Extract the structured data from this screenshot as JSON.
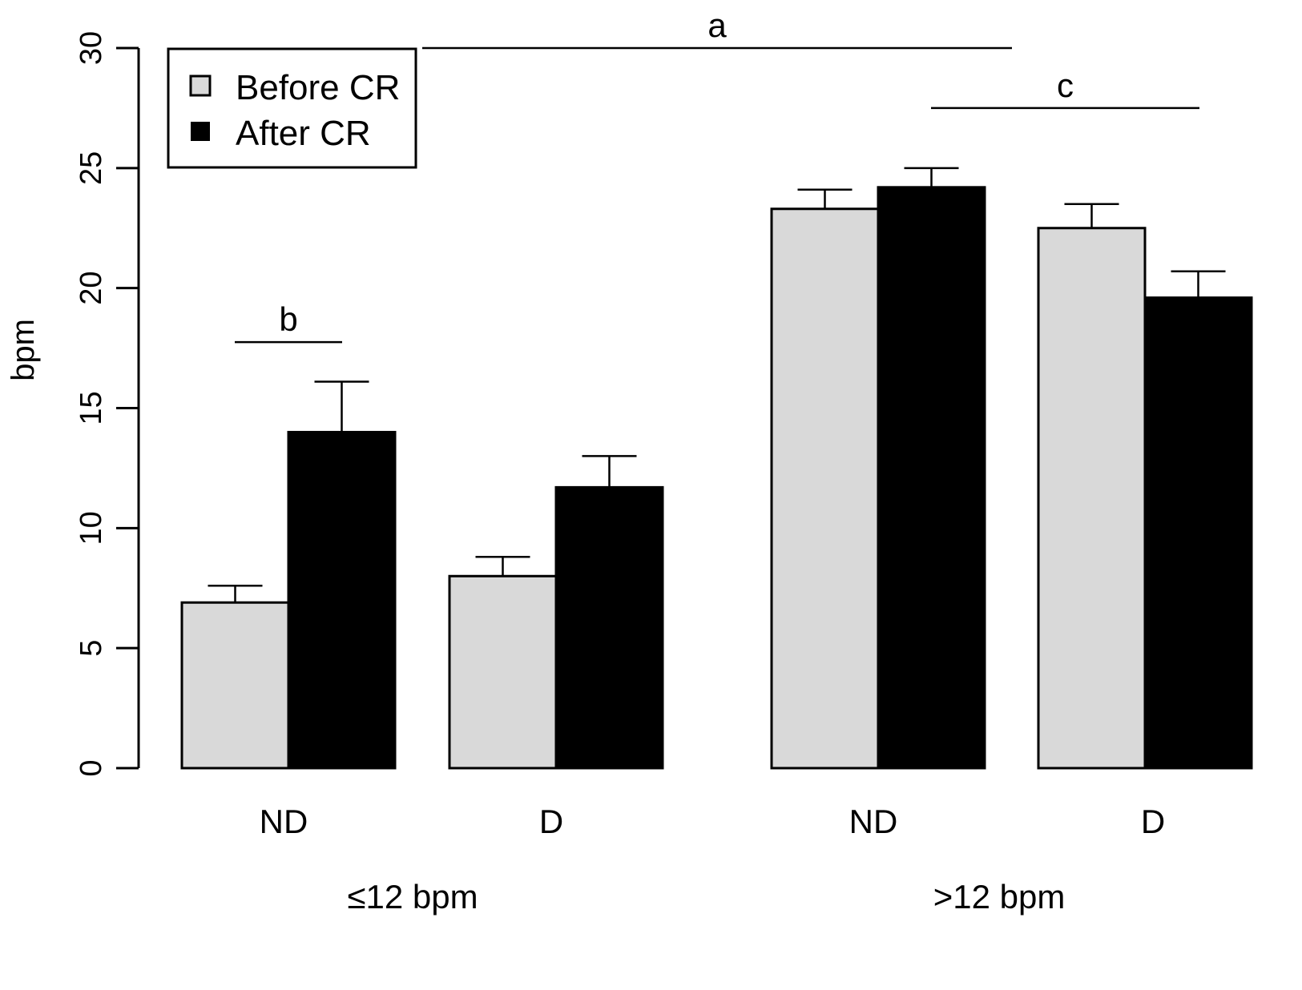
{
  "chart_data": {
    "type": "bar",
    "ylabel": "bpm",
    "ylim": [
      0,
      30
    ],
    "yticks": [
      0,
      5,
      10,
      15,
      20,
      25,
      30
    ],
    "categories": [
      "ND",
      "D",
      "ND",
      "D"
    ],
    "groups": [
      {
        "label": "≤12 bpm",
        "categories": [
          0,
          1
        ]
      },
      {
        "label": ">12 bpm",
        "categories": [
          2,
          3
        ]
      }
    ],
    "series": [
      {
        "name": "Before CR",
        "color": "#d9d9d9",
        "values": [
          6.9,
          8.0,
          23.3,
          22.5
        ],
        "error_upper": [
          7.6,
          8.8,
          24.1,
          23.5
        ]
      },
      {
        "name": "After CR",
        "color": "#000000",
        "values": [
          14.0,
          11.7,
          24.2,
          19.6
        ],
        "error_upper": [
          16.1,
          13.0,
          25.0,
          20.7
        ]
      }
    ],
    "annotations": [
      {
        "label": "a",
        "y": 30.0
      },
      {
        "label": "b",
        "y": 17.75
      },
      {
        "label": "c",
        "y": 27.5
      }
    ],
    "legend": "top-left",
    "grid": false
  }
}
